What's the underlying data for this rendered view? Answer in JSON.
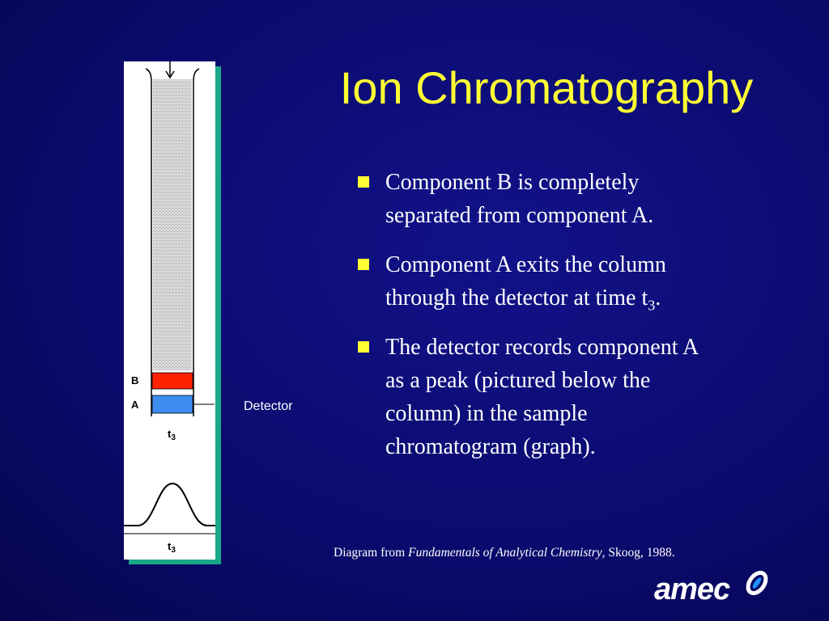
{
  "title": "Ion Chromatography",
  "bullets": [
    [
      "Component B is completely separated from component A."
    ],
    [
      "Component A exits the column through the detector at time t",
      "3",
      "."
    ],
    [
      "The detector records component A as a peak (pictured below the column) in the sample chromatogram (graph)."
    ]
  ],
  "diagram": {
    "band_b": "B",
    "band_a": "A",
    "column_time": [
      "t",
      "3"
    ],
    "peak_time": [
      "t",
      "3"
    ],
    "detector": "Detector"
  },
  "citation": [
    "Diagram from ",
    "Fundamentals of Analytical Chemistry",
    ", Skoog, 1988."
  ],
  "logo": "amec"
}
